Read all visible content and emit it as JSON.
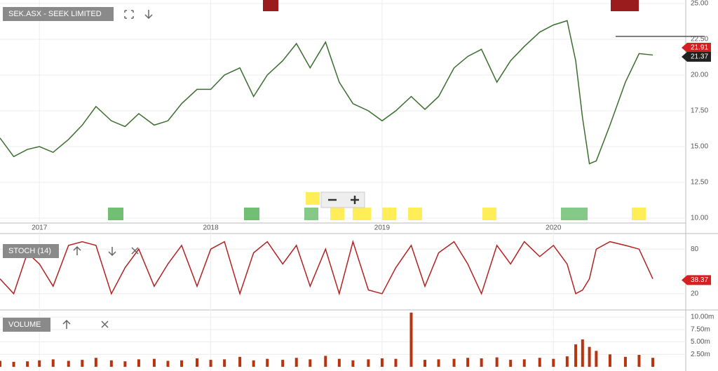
{
  "chart_data": [
    {
      "type": "line",
      "title": "SEK.ASX - SEEK LIMITED",
      "color": "#3a6e2e",
      "x": [
        2016.77,
        2016.85,
        2016.93,
        2017.0,
        2017.08,
        2017.17,
        2017.25,
        2017.33,
        2017.42,
        2017.5,
        2017.58,
        2017.67,
        2017.75,
        2017.83,
        2017.92,
        2018.0,
        2018.08,
        2018.17,
        2018.25,
        2018.33,
        2018.42,
        2018.5,
        2018.58,
        2018.67,
        2018.75,
        2018.83,
        2018.92,
        2019.0,
        2019.08,
        2019.17,
        2019.25,
        2019.33,
        2019.42,
        2019.5,
        2019.58,
        2019.67,
        2019.75,
        2019.83,
        2019.92,
        2020.0,
        2020.08,
        2020.13,
        2020.17,
        2020.21,
        2020.25,
        2020.33,
        2020.42,
        2020.5,
        2020.58
      ],
      "values": [
        15.6,
        14.3,
        14.8,
        15.0,
        14.6,
        15.5,
        16.5,
        17.8,
        16.8,
        16.4,
        17.3,
        16.5,
        16.8,
        18.0,
        19.0,
        19.0,
        20.0,
        20.5,
        18.5,
        20.0,
        21.0,
        22.2,
        20.5,
        22.3,
        19.5,
        18.0,
        17.5,
        16.8,
        17.5,
        18.5,
        17.6,
        18.5,
        20.5,
        21.3,
        21.8,
        19.5,
        21.0,
        22.0,
        23.0,
        23.5,
        23.8,
        21.0,
        17.0,
        13.8,
        14.0,
        16.5,
        19.5,
        21.5,
        21.4
      ],
      "xlim": [
        2016.77,
        2020.76
      ],
      "xticks": [
        2017,
        2018,
        2019,
        2020
      ],
      "ylim": [
        10,
        25
      ],
      "yticks": [
        {
          "value": 10,
          "label": "10.00"
        },
        {
          "value": 12.5,
          "label": "12.50"
        },
        {
          "value": 15,
          "label": "15.00"
        },
        {
          "value": 17.5,
          "label": "17.50"
        },
        {
          "value": 20,
          "label": "20.00"
        },
        {
          "value": 22.5,
          "label": "22.50"
        },
        {
          "value": 25,
          "label": "25.00"
        }
      ],
      "hline": 22.7,
      "tags": [
        21.91,
        21.37
      ],
      "tag_colors": [
        "#d42020",
        "#222222"
      ],
      "grid": true
    },
    {
      "type": "line",
      "title": "STOCH (14)",
      "color": "#b22222",
      "x": [
        2016.77,
        2016.85,
        2016.93,
        2017.0,
        2017.08,
        2017.17,
        2017.25,
        2017.33,
        2017.42,
        2017.5,
        2017.58,
        2017.67,
        2017.75,
        2017.83,
        2017.92,
        2018.0,
        2018.08,
        2018.17,
        2018.25,
        2018.33,
        2018.42,
        2018.5,
        2018.58,
        2018.67,
        2018.75,
        2018.83,
        2018.92,
        2019.0,
        2019.08,
        2019.17,
        2019.25,
        2019.33,
        2019.42,
        2019.5,
        2019.58,
        2019.67,
        2019.75,
        2019.83,
        2019.92,
        2020.0,
        2020.08,
        2020.13,
        2020.17,
        2020.21,
        2020.25,
        2020.33,
        2020.42,
        2020.5,
        2020.58
      ],
      "values": [
        40,
        20,
        75,
        60,
        30,
        85,
        90,
        85,
        20,
        55,
        80,
        30,
        60,
        85,
        30,
        80,
        90,
        20,
        75,
        90,
        60,
        85,
        30,
        80,
        20,
        90,
        25,
        20,
        55,
        85,
        30,
        75,
        90,
        60,
        20,
        85,
        60,
        90,
        70,
        85,
        60,
        20,
        25,
        40,
        80,
        90,
        85,
        80,
        40
      ],
      "xlim": [
        2016.77,
        2020.76
      ],
      "ylim": [
        0,
        100
      ],
      "yticks": [
        20,
        80
      ],
      "tags": [
        38.37
      ],
      "tag_colors": [
        "#d42020"
      ],
      "grid": true
    },
    {
      "type": "bar",
      "title": "VOLUME",
      "color": "#b8340f",
      "x": [
        2016.77,
        2016.85,
        2016.93,
        2017.0,
        2017.08,
        2017.17,
        2017.25,
        2017.33,
        2017.42,
        2017.5,
        2017.58,
        2017.67,
        2017.75,
        2017.83,
        2017.92,
        2018.0,
        2018.08,
        2018.17,
        2018.25,
        2018.33,
        2018.42,
        2018.5,
        2018.58,
        2018.67,
        2018.75,
        2018.83,
        2018.92,
        2019.0,
        2019.08,
        2019.17,
        2019.25,
        2019.33,
        2019.42,
        2019.5,
        2019.58,
        2019.67,
        2019.75,
        2019.83,
        2019.92,
        2020.0,
        2020.08,
        2020.13,
        2020.17,
        2020.21,
        2020.25,
        2020.33,
        2020.42,
        2020.5,
        2020.58
      ],
      "values": [
        1200000,
        1000000,
        1100000,
        1300000,
        1500000,
        1200000,
        1400000,
        1800000,
        1300000,
        1100000,
        1500000,
        1600000,
        1200000,
        1300000,
        1700000,
        1400000,
        1500000,
        2000000,
        1300000,
        1600000,
        1400000,
        1800000,
        1500000,
        2200000,
        1600000,
        1300000,
        1500000,
        1700000,
        1600000,
        10900000,
        1400000,
        1500000,
        1600000,
        1800000,
        1700000,
        1900000,
        1400000,
        1500000,
        1800000,
        1600000,
        2100000,
        4500000,
        5500000,
        4000000,
        3200000,
        2500000,
        2000000,
        2400000,
        1800000
      ],
      "xlim": [
        2016.77,
        2020.76
      ],
      "ylim": [
        0,
        11000000
      ],
      "yticks": [
        {
          "value": 2500000,
          "label": "2.50m"
        },
        {
          "value": 5000000,
          "label": "5.00m"
        },
        {
          "value": 7500000,
          "label": "7.50m"
        },
        {
          "value": 10000000,
          "label": "10.00m"
        }
      ],
      "grid": true
    }
  ]
}
